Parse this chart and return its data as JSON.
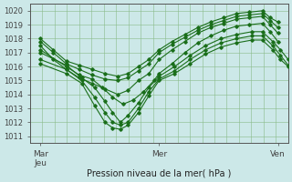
{
  "title": "",
  "xlabel": "Pression niveau de la mer( hPa )",
  "ylabel": "",
  "background_color": "#cce8e8",
  "grid_color": "#88bb88",
  "line_color": "#1a6e1a",
  "ylim": [
    1010.5,
    1020.5
  ],
  "yticks": [
    1011,
    1012,
    1013,
    1014,
    1015,
    1016,
    1017,
    1018,
    1019,
    1020
  ],
  "xlim": [
    0,
    1
  ],
  "xtick_positions": [
    0.04,
    0.5,
    0.96
  ],
  "xtick_labels": [
    "Mar\nJeu",
    "Mer",
    "Ven"
  ],
  "lines": [
    {
      "x": [
        0.04,
        0.09,
        0.14,
        0.19,
        0.24,
        0.29,
        0.34,
        0.38,
        0.42,
        0.46,
        0.5,
        0.55,
        0.6,
        0.65,
        0.7,
        0.75,
        0.8,
        0.85,
        0.9,
        0.93,
        0.96
      ],
      "y": [
        1018.0,
        1017.2,
        1016.4,
        1016.1,
        1015.8,
        1015.5,
        1015.3,
        1015.5,
        1016.0,
        1016.5,
        1017.2,
        1017.8,
        1018.3,
        1018.8,
        1019.2,
        1019.5,
        1019.8,
        1019.9,
        1020.0,
        1019.5,
        1019.2
      ]
    },
    {
      "x": [
        0.04,
        0.09,
        0.14,
        0.19,
        0.24,
        0.29,
        0.34,
        0.38,
        0.42,
        0.46,
        0.5,
        0.55,
        0.6,
        0.65,
        0.7,
        0.75,
        0.8,
        0.85,
        0.9,
        0.93,
        0.96
      ],
      "y": [
        1017.8,
        1017.0,
        1016.2,
        1015.8,
        1015.4,
        1015.1,
        1015.0,
        1015.2,
        1015.7,
        1016.2,
        1017.0,
        1017.6,
        1018.1,
        1018.6,
        1019.0,
        1019.3,
        1019.6,
        1019.7,
        1019.8,
        1019.3,
        1018.8
      ]
    },
    {
      "x": [
        0.04,
        0.09,
        0.14,
        0.19,
        0.24,
        0.29,
        0.34,
        0.38,
        0.42,
        0.46,
        0.5,
        0.55,
        0.6,
        0.65,
        0.7,
        0.75,
        0.8,
        0.85,
        0.9,
        0.93,
        0.96
      ],
      "y": [
        1017.5,
        1016.5,
        1015.8,
        1015.2,
        1014.8,
        1014.4,
        1014.0,
        1014.3,
        1015.0,
        1015.5,
        1016.5,
        1017.2,
        1017.8,
        1018.4,
        1018.8,
        1019.1,
        1019.4,
        1019.5,
        1019.6,
        1019.0,
        1018.4
      ]
    },
    {
      "x": [
        0.04,
        0.14,
        0.19,
        0.24,
        0.28,
        0.32,
        0.36,
        0.4,
        0.44,
        0.48,
        0.5,
        0.55,
        0.6,
        0.65,
        0.7,
        0.75,
        0.8,
        0.85,
        0.9,
        0.93,
        0.96
      ],
      "y": [
        1017.2,
        1016.0,
        1015.4,
        1015.1,
        1014.5,
        1013.8,
        1013.3,
        1013.6,
        1014.2,
        1015.0,
        1015.5,
        1016.2,
        1017.0,
        1017.7,
        1018.2,
        1018.6,
        1018.9,
        1019.0,
        1019.1,
        1018.5,
        1017.8
      ]
    },
    {
      "x": [
        0.04,
        0.14,
        0.2,
        0.25,
        0.29,
        0.32,
        0.35,
        0.38,
        0.42,
        0.46,
        0.5,
        0.56,
        0.62,
        0.68,
        0.74,
        0.8,
        0.86,
        0.9,
        0.94,
        0.97,
        1.0
      ],
      "y": [
        1017.0,
        1016.1,
        1015.2,
        1014.5,
        1013.5,
        1012.7,
        1012.0,
        1012.5,
        1013.4,
        1014.5,
        1015.3,
        1016.0,
        1016.8,
        1017.5,
        1018.0,
        1018.3,
        1018.5,
        1018.5,
        1017.8,
        1017.2,
        1016.5
      ]
    },
    {
      "x": [
        0.04,
        0.14,
        0.2,
        0.25,
        0.29,
        0.32,
        0.35,
        0.38,
        0.42,
        0.46,
        0.5,
        0.56,
        0.62,
        0.68,
        0.74,
        0.8,
        0.86,
        0.9,
        0.94,
        0.97,
        1.0
      ],
      "y": [
        1016.5,
        1015.8,
        1015.0,
        1013.8,
        1012.7,
        1012.0,
        1011.8,
        1012.0,
        1013.0,
        1014.2,
        1015.1,
        1015.7,
        1016.5,
        1017.2,
        1017.7,
        1018.0,
        1018.2,
        1018.2,
        1017.5,
        1016.8,
        1016.1
      ]
    },
    {
      "x": [
        0.04,
        0.14,
        0.2,
        0.25,
        0.29,
        0.32,
        0.35,
        0.38,
        0.42,
        0.46,
        0.5,
        0.56,
        0.62,
        0.68,
        0.74,
        0.8,
        0.86,
        0.9,
        0.94,
        0.97,
        1.0
      ],
      "y": [
        1016.2,
        1015.5,
        1014.8,
        1013.2,
        1012.0,
        1011.6,
        1011.5,
        1011.8,
        1012.7,
        1013.9,
        1015.0,
        1015.5,
        1016.2,
        1016.9,
        1017.4,
        1017.7,
        1017.9,
        1017.9,
        1017.2,
        1016.5,
        1016.0
      ]
    }
  ]
}
